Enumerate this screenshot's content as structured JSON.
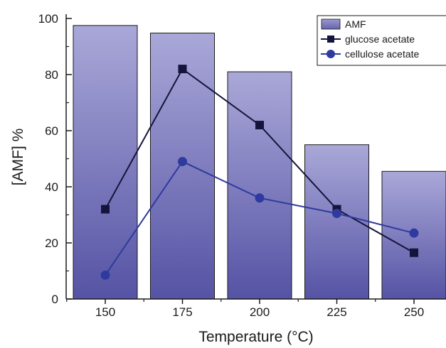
{
  "chart_data": {
    "type": "bar",
    "categories": [
      "150",
      "175",
      "200",
      "225",
      "250"
    ],
    "xlabel": "Temperature (°C)",
    "ylabel": "[AMF] %",
    "ylim": [
      0,
      100
    ],
    "yticks": [
      0,
      20,
      40,
      60,
      80,
      100
    ],
    "grid": false,
    "legend_position": "top-right",
    "series": [
      {
        "name": "AMF",
        "kind": "bar",
        "values": [
          97.5,
          94.8,
          81.0,
          55.0,
          45.5
        ],
        "color": "#6e6cb4"
      },
      {
        "name": "glucose acetate",
        "kind": "line",
        "marker": "square",
        "values": [
          32.0,
          82.0,
          62.0,
          32.0,
          16.5
        ],
        "color": "#14143c"
      },
      {
        "name": "cellulose acetate",
        "kind": "line",
        "marker": "circle",
        "values": [
          8.5,
          49.0,
          36.0,
          30.5,
          23.5
        ],
        "color": "#2e3a9e"
      }
    ]
  }
}
